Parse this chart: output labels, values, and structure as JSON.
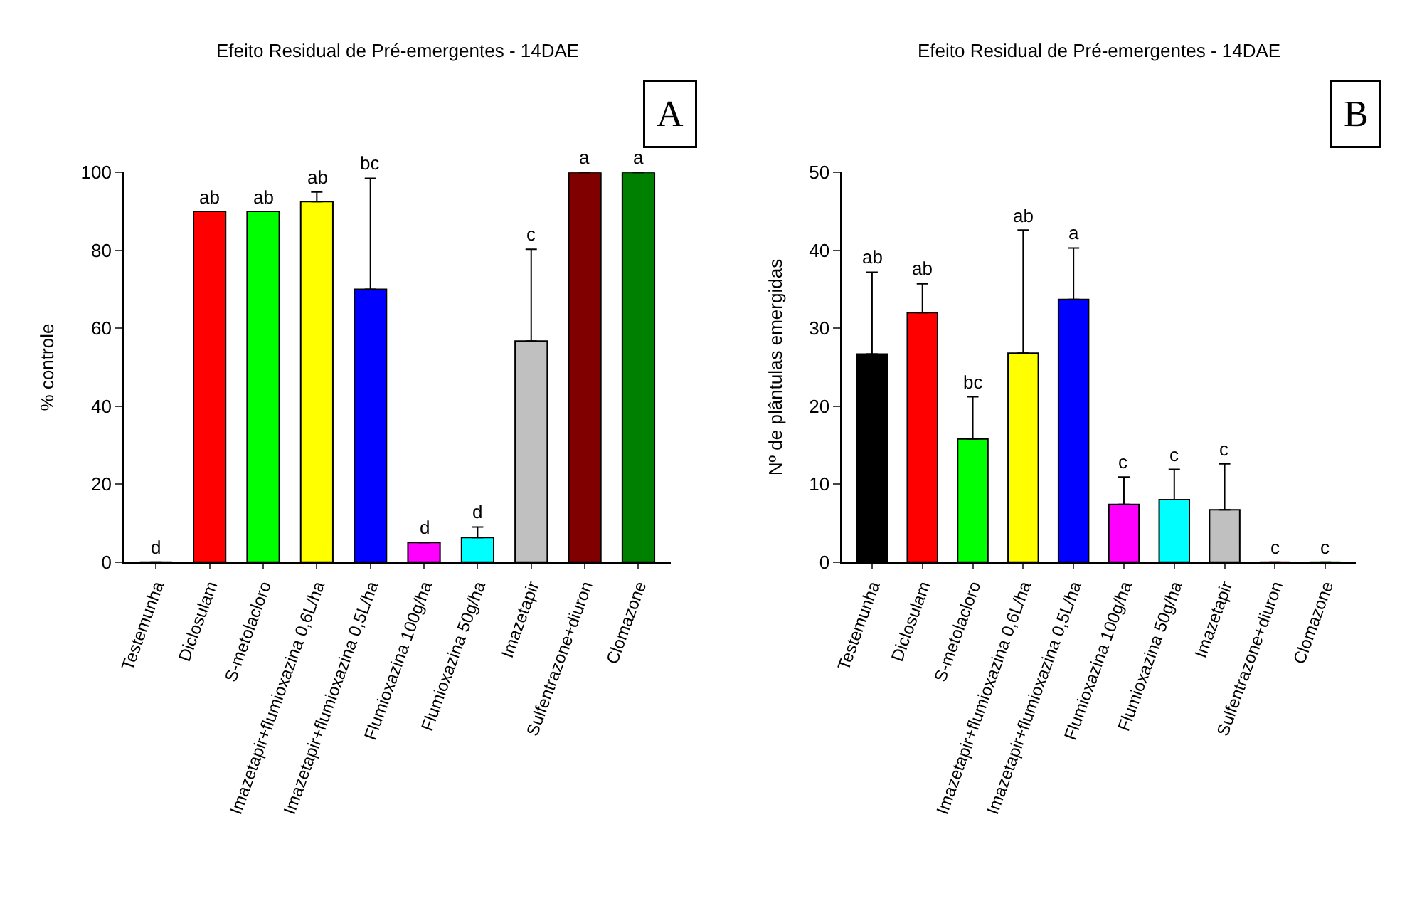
{
  "chart_data": [
    {
      "type": "bar",
      "title": "Efeito Residual de Pré-emergentes - 14DAE",
      "ylabel": "% controle",
      "categories": [
        "Testemunha",
        "Diclosulam",
        "S-metolacloro",
        "Imazetapir+flumioxazina 0,6L/ha",
        "Imazetapir+flumioxazina 0,5L/ha",
        "Flumioxazina 100g/ha",
        "Flumioxazina 50g/ha",
        "Imazetapir",
        "Sulfentrazone+diuron",
        "Clomazone"
      ],
      "values": [
        0,
        90,
        90,
        92.5,
        70,
        5,
        6.3,
        56.7,
        100,
        100
      ],
      "errors": [
        null,
        null,
        null,
        [
          92.5,
          95
        ],
        [
          70,
          98.5
        ],
        null,
        [
          6.3,
          9
        ],
        [
          56.7,
          80.3
        ],
        null,
        null
      ],
      "colors": [
        "#000000",
        "#ff0000",
        "#00ff00",
        "#ffff00",
        "#0000ff",
        "#ff00ff",
        "#00ffff",
        "#c0c0c0",
        "#800000",
        "#008000"
      ],
      "ylim": [
        0,
        100
      ],
      "yticks": [
        0,
        20,
        40,
        60,
        80,
        100
      ],
      "annotations": [
        "A",
        {
          "text": "d",
          "x": "Testemunha",
          "y": 0
        },
        {
          "text": "ab",
          "x": "Diclosulam",
          "y": 90
        },
        {
          "text": "ab",
          "x": "S-metolacloro",
          "y": 90
        },
        {
          "text": "ab",
          "x": "Imazetapir+flumioxazina 0,6L/ha",
          "y": 95
        },
        {
          "text": "bc",
          "x": "Imazetapir+flumioxazina 0,5L/ha",
          "y": 98.5
        },
        {
          "text": "d",
          "x": "Flumioxazina 100g/ha",
          "y": 5
        },
        {
          "text": "d",
          "x": "Flumioxazina 50g/ha",
          "y": 9
        },
        {
          "text": "c",
          "x": "Imazetapir",
          "y": 80.3
        },
        {
          "text": "a",
          "x": "Sulfentrazone+diuron",
          "y": 100
        },
        {
          "text": "a",
          "x": "Clomazone",
          "y": 100
        }
      ]
    },
    {
      "type": "bar",
      "title": "Efeito Residual de Pré-emergentes - 14DAE",
      "ylabel": "Nº de plântulas emergidas",
      "categories": [
        "Testemunha",
        "Diclosulam",
        "S-metolacloro",
        "Imazetapir+flumioxazina 0,6L/ha",
        "Imazetapir+flumioxazina 0,5L/ha",
        "Flumioxazina 100g/ha",
        "Flumioxazina 50g/ha",
        "Imazetapir",
        "Sulfentrazone+diuron",
        "Clomazone"
      ],
      "values": [
        26.7,
        32,
        15.8,
        26.8,
        33.7,
        7.4,
        8.0,
        6.7,
        0,
        0
      ],
      "errors": [
        [
          26.7,
          37.2
        ],
        [
          32,
          35.7
        ],
        [
          15.8,
          21.2
        ],
        [
          26.8,
          42.6
        ],
        [
          33.7,
          40.3
        ],
        [
          7.4,
          10.9
        ],
        [
          8.0,
          11.9
        ],
        [
          6.7,
          12.6
        ],
        null,
        null
      ],
      "colors": [
        "#000000",
        "#ff0000",
        "#00ff00",
        "#ffff00",
        "#0000ff",
        "#ff00ff",
        "#00ffff",
        "#c0c0c0",
        "#800000",
        "#008000"
      ],
      "ylim": [
        0,
        50
      ],
      "yticks": [
        0,
        10,
        20,
        30,
        40,
        50
      ],
      "annotations": [
        "B",
        {
          "text": "ab",
          "x": "Testemunha",
          "y": 37.2
        },
        {
          "text": "ab",
          "x": "Diclosulam",
          "y": 35.7
        },
        {
          "text": "bc",
          "x": "S-metolacloro",
          "y": 21.2
        },
        {
          "text": "ab",
          "x": "Imazetapir+flumioxazina 0,6L/ha",
          "y": 42.6
        },
        {
          "text": "a",
          "x": "Imazetapir+flumioxazina 0,5L/ha",
          "y": 40.3
        },
        {
          "text": "c",
          "x": "Flumioxazina 100g/ha",
          "y": 10.9
        },
        {
          "text": "c",
          "x": "Flumioxazina 50g/ha",
          "y": 11.9
        },
        {
          "text": "c",
          "x": "Imazetapir",
          "y": 12.6
        },
        {
          "text": "c",
          "x": "Sulfentrazone+diuron",
          "y": 0
        },
        {
          "text": "c",
          "x": "Clomazone",
          "y": 0
        }
      ]
    }
  ]
}
